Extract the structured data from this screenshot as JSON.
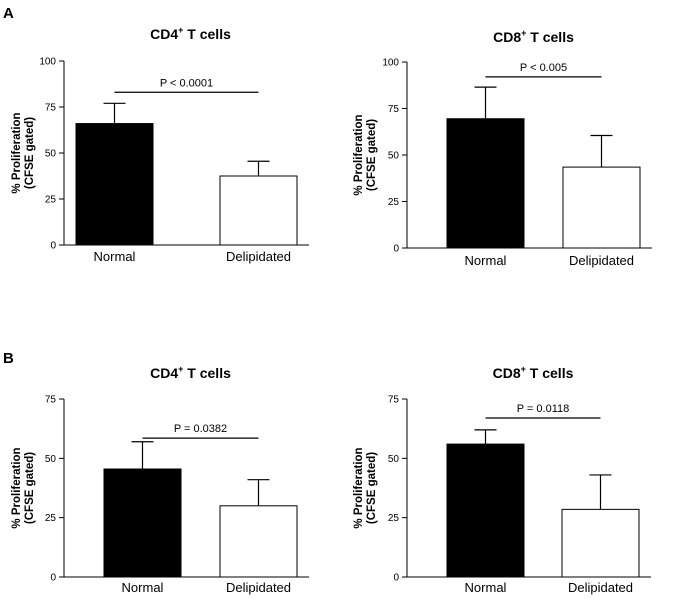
{
  "panels": [
    {
      "letter": "A"
    },
    {
      "letter": "B"
    }
  ],
  "chart_data": [
    {
      "type": "bar",
      "panel": "A",
      "title_main": "CD4",
      "title_sup": "+",
      "title_rest": " T cells",
      "ylabel_line1": "% Proliferation",
      "ylabel_line2": "(CFSE gated)",
      "categories": [
        "Normal",
        "Delipidated"
      ],
      "values": [
        66,
        37.5
      ],
      "errors": [
        11,
        8
      ],
      "bar_colors": [
        "#000000",
        "#ffffff"
      ],
      "ylim": [
        0,
        100
      ],
      "yticks": [
        0,
        25,
        50,
        75,
        100
      ],
      "annotation": "P < 0.0001",
      "annotation_level": 83,
      "grid": false
    },
    {
      "type": "bar",
      "panel": "A",
      "title_main": "CD8",
      "title_sup": "+",
      "title_rest": " T cells",
      "ylabel_line1": "% Proliferation",
      "ylabel_line2": "(CFSE gated)",
      "categories": [
        "Normal",
        "Delipidated"
      ],
      "values": [
        69.5,
        43.5
      ],
      "errors": [
        17,
        17
      ],
      "bar_colors": [
        "#000000",
        "#ffffff"
      ],
      "ylim": [
        0,
        100
      ],
      "yticks": [
        0,
        25,
        50,
        75,
        100
      ],
      "annotation": "P < 0.005",
      "annotation_level": 92,
      "grid": false
    },
    {
      "type": "bar",
      "panel": "B",
      "title_main": "CD4",
      "title_sup": "+",
      "title_rest": " T cells",
      "ylabel_line1": "% Proliferation",
      "ylabel_line2": "(CFSE gated)",
      "categories": [
        "Normal",
        "Delipidated"
      ],
      "values": [
        45.5,
        30
      ],
      "errors": [
        11.5,
        11
      ],
      "bar_colors": [
        "#000000",
        "#ffffff"
      ],
      "ylim": [
        0,
        75
      ],
      "yticks": [
        0,
        25,
        50,
        75
      ],
      "annotation": "P = 0.0382",
      "annotation_level": 58.5,
      "grid": false
    },
    {
      "type": "bar",
      "panel": "B",
      "title_main": "CD8",
      "title_sup": "+",
      "title_rest": " T cells",
      "ylabel_line1": "% Proliferation",
      "ylabel_line2": "(CFSE gated)",
      "categories": [
        "Normal",
        "Delipidated"
      ],
      "values": [
        56,
        28.5
      ],
      "errors": [
        6,
        14.5
      ],
      "bar_colors": [
        "#000000",
        "#ffffff"
      ],
      "ylim": [
        0,
        75
      ],
      "yticks": [
        0,
        25,
        50,
        75
      ],
      "annotation": "P = 0.0118",
      "annotation_level": 67,
      "grid": false
    }
  ]
}
